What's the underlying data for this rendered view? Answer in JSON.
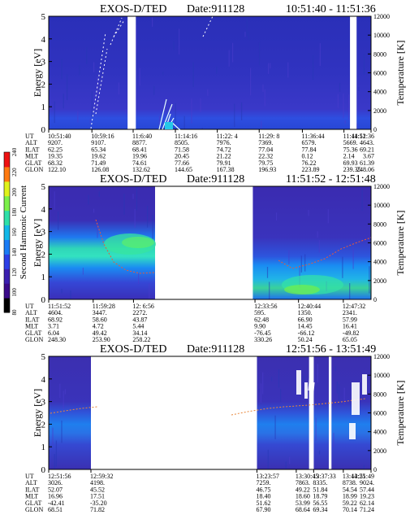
{
  "colorbar": {
    "label": "Second Harmonic Current",
    "ticks": [
      "240",
      "220",
      "200",
      "180",
      "160",
      "140",
      "120",
      "100",
      "80"
    ],
    "colors": [
      "#000000",
      "#3a0a8a",
      "#3b1fb0",
      "#2c3fe6",
      "#1a7cf5",
      "#12b8e8",
      "#2fe0a8",
      "#7cf04a",
      "#dff21a",
      "#ff7a10",
      "#ee1111"
    ]
  },
  "chart_data": [
    {
      "type": "heatmap",
      "title": "EXOS-D/TED",
      "date": "Date:911128",
      "time_range": "10:51:40 - 11:51:36",
      "ylabel": "Energy [eV]",
      "ylabel_right": "Temperature [K]",
      "ylim": [
        0,
        5
      ],
      "yticks": [
        "0",
        "1",
        "2",
        "3",
        "4",
        "5"
      ],
      "ylim_right": [
        0,
        12000
      ],
      "yticks_right": [
        "0",
        "2000",
        "4000",
        "6000",
        "8000",
        "10000",
        "12000"
      ],
      "data_spans": [
        [
          0,
          0.245
        ],
        [
          0.27,
          0.935
        ],
        [
          0.955,
          1.0
        ]
      ],
      "gaps": [
        [
          0.245,
          0.27
        ],
        [
          0.935,
          0.955
        ]
      ],
      "row_labels": [
        "UT",
        "ALT",
        "ILAT",
        "MLT",
        "GLAT",
        "GLON"
      ],
      "columns": [
        {
          "pos": 0.0,
          "values": [
            "10:51:40",
            "9207.",
            "62.25",
            "19.35",
            "68.32",
            "122.10"
          ]
        },
        {
          "pos": 0.134,
          "values": [
            "10:59:16",
            "9107.",
            "65.34",
            "19.62",
            "71.49",
            "126.08"
          ]
        },
        {
          "pos": 0.262,
          "values": [
            "11:6:40",
            "8877.",
            "68.41",
            "19.96",
            "74.61",
            "132.62"
          ]
        },
        {
          "pos": 0.393,
          "values": [
            "11:14:16",
            "8505.",
            "71.58",
            "20.45",
            "77.66",
            "144.65"
          ]
        },
        {
          "pos": 0.523,
          "values": [
            "11:22: 4",
            "7976.",
            "74.72",
            "21.22",
            "79.91",
            "167.38"
          ]
        },
        {
          "pos": 0.653,
          "values": [
            "11:29: 8",
            "7369.",
            "77.04",
            "22.32",
            "79.75",
            "196.93"
          ]
        },
        {
          "pos": 0.787,
          "values": [
            "11:36:44",
            "6579.",
            "77.84",
            "0.12",
            "76.22",
            "223.89"
          ]
        },
        {
          "pos": 0.916,
          "values": [
            "11:44:12",
            "5669.",
            "75.36",
            "2.14",
            "69.93",
            "239.35"
          ]
        },
        {
          "pos": 1.0,
          "values": [
            "11:51:36",
            "4643.",
            "69.21",
            "3.67",
            "61.39",
            "248.06"
          ]
        }
      ]
    },
    {
      "type": "heatmap",
      "title": "EXOS-D/TED",
      "date": "Date:911128",
      "time_range": "11:51:52 - 12:51:48",
      "ylabel": "Energy [eV]",
      "ylabel_right": "Temperature [K]",
      "ylim": [
        0,
        5
      ],
      "yticks": [
        "0",
        "1",
        "2",
        "3",
        "4",
        "5"
      ],
      "ylim_right": [
        0,
        12000
      ],
      "yticks_right": [
        "0",
        "2000",
        "4000",
        "6000",
        "8000",
        "10000",
        "12000"
      ],
      "data_spans": [
        [
          0,
          0.33
        ],
        [
          0.633,
          1.0
        ]
      ],
      "gaps": [
        [
          0.33,
          0.633
        ]
      ],
      "row_labels": [
        "UT",
        "ALT",
        "ILAT",
        "MLT",
        "GLAT",
        "GLON"
      ],
      "columns": [
        {
          "pos": 0.0,
          "values": [
            "11:51:52",
            "4604.",
            "68.92",
            "3.71",
            "6.04",
            "248.30"
          ]
        },
        {
          "pos": 0.138,
          "values": [
            "11:59:28",
            "3447.",
            "58.60",
            "4.72",
            "49.42",
            "253.90"
          ]
        },
        {
          "pos": 0.263,
          "values": [
            "12: 6:56",
            "2272.",
            "43.87",
            "5.44",
            "34.14",
            "258.22"
          ]
        },
        {
          "pos": 0.64,
          "values": [
            "12:33:56",
            "595.",
            "62.48",
            "9.90",
            "-76.45",
            "330.26"
          ]
        },
        {
          "pos": 0.775,
          "values": [
            "12:40:44",
            "1350.",
            "66.90",
            "14.45",
            "-66.12",
            "50.24"
          ]
        },
        {
          "pos": 0.914,
          "values": [
            "12:47:32",
            "2341.",
            "57.99",
            "16.41",
            "-49.82",
            "65.05"
          ]
        }
      ]
    },
    {
      "type": "heatmap",
      "title": "EXOS-D/TED",
      "date": "Date:911128",
      "time_range": "12:51:56 - 13:51:49",
      "ylabel": "Energy [eV]",
      "ylabel_right": "Temperature [K]",
      "ylim": [
        0,
        5
      ],
      "yticks": [
        "0",
        "1",
        "2",
        "3",
        "4",
        "5"
      ],
      "ylim_right": [
        0,
        12000
      ],
      "yticks_right": [
        "0",
        "2000",
        "4000",
        "6000",
        "8000",
        "10000",
        "12000"
      ],
      "data_spans": [
        [
          0,
          0.131
        ],
        [
          0.646,
          0.808
        ],
        [
          0.822,
          0.869
        ],
        [
          0.877,
          1.0
        ]
      ],
      "gaps": [
        [
          0.131,
          0.646
        ],
        [
          0.808,
          0.822
        ],
        [
          0.869,
          0.877
        ]
      ],
      "row_labels": [
        "UT",
        "ALT",
        "ILAT",
        "MLT",
        "GLAT",
        "GLON"
      ],
      "columns": [
        {
          "pos": 0.0,
          "values": [
            "12:51:56",
            "3026.",
            "52.07",
            "16.96",
            "-42.41",
            "68.51"
          ]
        },
        {
          "pos": 0.131,
          "values": [
            "12:59:32",
            "4198.",
            "45.52",
            "17.51",
            "-35.20",
            "71.82"
          ]
        },
        {
          "pos": 0.646,
          "values": [
            "13:23:57",
            "7259.",
            "46.75",
            "18.40",
            "51.62",
            "67.90"
          ]
        },
        {
          "pos": 0.768,
          "values": [
            "13:30:45",
            "7863.",
            "49.22",
            "18.60",
            "53.99",
            "68.64"
          ]
        },
        {
          "pos": 0.822,
          "values": [
            "13:37:33",
            "8335.",
            "51.84",
            "18.79",
            "56.55",
            "69.34"
          ]
        },
        {
          "pos": 0.914,
          "values": [
            "13:44:25",
            "8738.",
            "54.54",
            "18.99",
            "59.22",
            "70.14"
          ]
        },
        {
          "pos": 1.0,
          "values": [
            "13:51:49",
            "9024.",
            "57.44",
            "19.23",
            "62.14",
            "71.24"
          ]
        }
      ]
    }
  ]
}
